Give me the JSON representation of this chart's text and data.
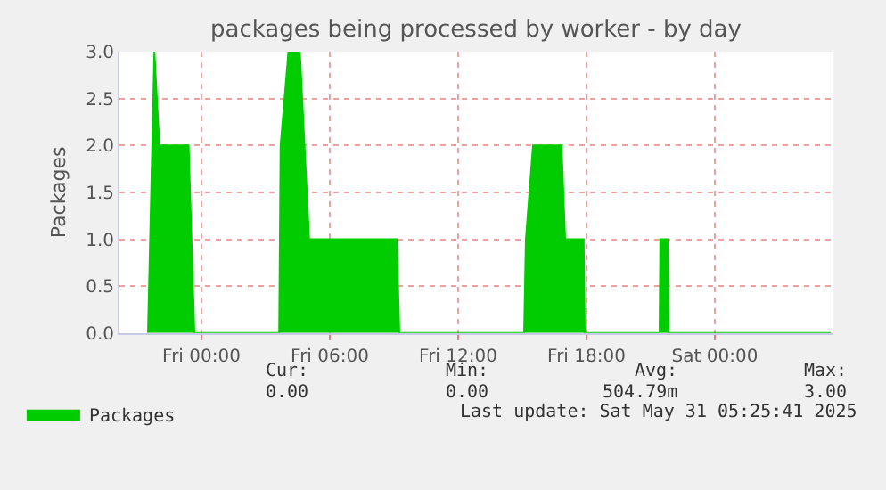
{
  "chart_data": {
    "type": "area",
    "title": "packages being processed by worker - by day",
    "ylabel": "Packages",
    "series": [
      {
        "name": "Packages",
        "color": "#00cc00",
        "x": [
          "2025-05-29T21:30",
          "2025-05-29T21:48",
          "2025-05-29T22:02",
          "2025-05-29T23:24",
          "2025-05-29T23:40",
          "2025-05-30T03:38",
          "2025-05-30T03:42",
          "2025-05-30T04:04",
          "2025-05-30T04:36",
          "2025-05-30T05:02",
          "2025-05-30T09:08",
          "2025-05-30T09:15",
          "2025-05-30T15:05",
          "2025-05-30T15:10",
          "2025-05-30T15:30",
          "2025-05-30T16:50",
          "2025-05-30T17:00",
          "2025-05-30T17:52",
          "2025-05-30T17:55",
          "2025-05-30T21:25",
          "2025-05-30T21:27",
          "2025-05-30T21:48",
          "2025-05-30T21:50",
          "2025-05-31T05:25"
        ],
        "values": [
          0,
          3,
          2,
          2,
          0,
          0,
          2,
          3,
          3,
          1,
          1,
          0,
          0,
          1,
          2,
          2,
          1,
          1,
          0,
          0,
          1,
          1,
          0,
          0
        ]
      }
    ],
    "xlim": [
      "2025-05-29T20:10",
      "2025-05-31T05:30"
    ],
    "xticks": [
      {
        "value": "2025-05-30T00:00",
        "label": "Fri 00:00"
      },
      {
        "value": "2025-05-30T06:00",
        "label": "Fri 06:00"
      },
      {
        "value": "2025-05-30T12:00",
        "label": "Fri 12:00"
      },
      {
        "value": "2025-05-30T18:00",
        "label": "Fri 18:00"
      },
      {
        "value": "2025-05-31T00:00",
        "label": "Sat 00:00"
      }
    ],
    "ylim": [
      0,
      3
    ],
    "yticks": [
      {
        "value": 0,
        "label": "0.0"
      },
      {
        "value": 0.5,
        "label": "0.5"
      },
      {
        "value": 1,
        "label": "1.0"
      },
      {
        "value": 1.5,
        "label": "1.5"
      },
      {
        "value": 2,
        "label": "2.0"
      },
      {
        "value": 2.5,
        "label": "2.5"
      },
      {
        "value": 3,
        "label": "3.0"
      }
    ],
    "grid": true,
    "legend": "bottom left",
    "annotations": [
      "Cur:",
      "Min:",
      "Avg:",
      "Max:",
      "0.00",
      "0.00",
      "504.79m",
      "3.00",
      "Last update: Sat May 31 05:25:41 2025"
    ]
  }
}
